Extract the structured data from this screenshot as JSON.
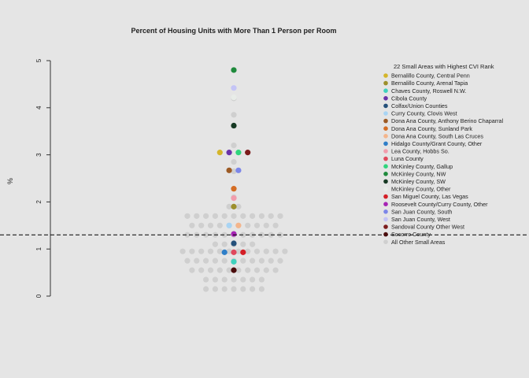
{
  "chart_data": {
    "type": "scatter",
    "title": "Percent of Housing Units with More Than 1 Person per Room",
    "xlabel": "",
    "ylabel": "%",
    "ylim": [
      0,
      5
    ],
    "yticks": [
      0,
      1,
      2,
      3,
      4,
      5
    ],
    "reference_line": 1.3,
    "grid": false,
    "legend_position": "right",
    "legend_title": "22 Small Areas with Highest CVI Rank",
    "background": [
      {
        "y": 0.15,
        "n": 7
      },
      {
        "y": 0.35,
        "n": 7
      },
      {
        "y": 0.55,
        "n": 10
      },
      {
        "y": 0.75,
        "n": 11
      },
      {
        "y": 0.95,
        "n": 12
      },
      {
        "y": 1.1,
        "n": 5
      },
      {
        "y": 1.3,
        "n": 11
      },
      {
        "y": 1.5,
        "n": 10
      },
      {
        "y": 1.7,
        "n": 11
      },
      {
        "y": 1.9,
        "n": 2
      },
      {
        "y": 2.1,
        "n": 1
      },
      {
        "y": 2.65,
        "n": 1
      },
      {
        "y": 2.85,
        "n": 1
      },
      {
        "y": 3.2,
        "n": 1
      },
      {
        "y": 3.85,
        "n": 1
      },
      {
        "y": 4.2,
        "n": 1
      }
    ],
    "series": [
      {
        "name": "Bernalillo County, Central Penn",
        "color": "#d4b52a",
        "y": 3.05
      },
      {
        "name": "Bernalillo County, Arenal Tapia",
        "color": "#9c8f2c",
        "y": 1.9
      },
      {
        "name": "Chaves County, Roswell N.W.",
        "color": "#3fd1bd",
        "y": 0.73
      },
      {
        "name": "Cibola County",
        "color": "#6a32a8",
        "y": 3.05
      },
      {
        "name": "Colfax/Union Counties",
        "color": "#24507a",
        "y": 1.12
      },
      {
        "name": "Curry County, Clovis West",
        "color": "#a8d4f4",
        "y": 1.5
      },
      {
        "name": "Dona Ana County, Anthony Berino Chaparral",
        "color": "#9c5a24",
        "y": 2.67
      },
      {
        "name": "Dona Ana County, Sunland Park",
        "color": "#d46d24",
        "y": 2.28
      },
      {
        "name": "Dona Ana County, South Las Cruces",
        "color": "#f4b58c",
        "y": 1.5
      },
      {
        "name": "Hidalgo County/Grant County, Other",
        "color": "#2f7fc8",
        "y": 0.93
      },
      {
        "name": "Lea County, Hobbs So.",
        "color": "#f29cac",
        "y": 2.08
      },
      {
        "name": "Luna County",
        "color": "#e0485c",
        "y": 0.93
      },
      {
        "name": "McKinley County, Gallup",
        "color": "#2fd47c",
        "y": 3.05
      },
      {
        "name": "McKinley County, NW",
        "color": "#1f8a3c",
        "y": 4.8
      },
      {
        "name": "McKinley County, SW",
        "color": "#173a24",
        "y": 3.62
      },
      {
        "name": "McKinley County, Other",
        "color": "#e8ece8",
        "y": 4.22
      },
      {
        "name": "San Miguel County, Las Vegas",
        "color": "#d41e26",
        "y": 0.93
      },
      {
        "name": "Roosevelt County/Curry County, Other",
        "color": "#a624b4",
        "y": 1.32
      },
      {
        "name": "San Juan County, South",
        "color": "#7c86e8",
        "y": 2.67
      },
      {
        "name": "San Juan County, West",
        "color": "#c4c4f6",
        "y": 4.42
      },
      {
        "name": "Sandoval County Other West",
        "color": "#7c1c1c",
        "y": 3.05
      },
      {
        "name": "Socorro County",
        "color": "#4a0c0c",
        "y": 0.55
      }
    ],
    "other_label": "All Other Small Areas",
    "other_color": "#cfcfcf"
  }
}
